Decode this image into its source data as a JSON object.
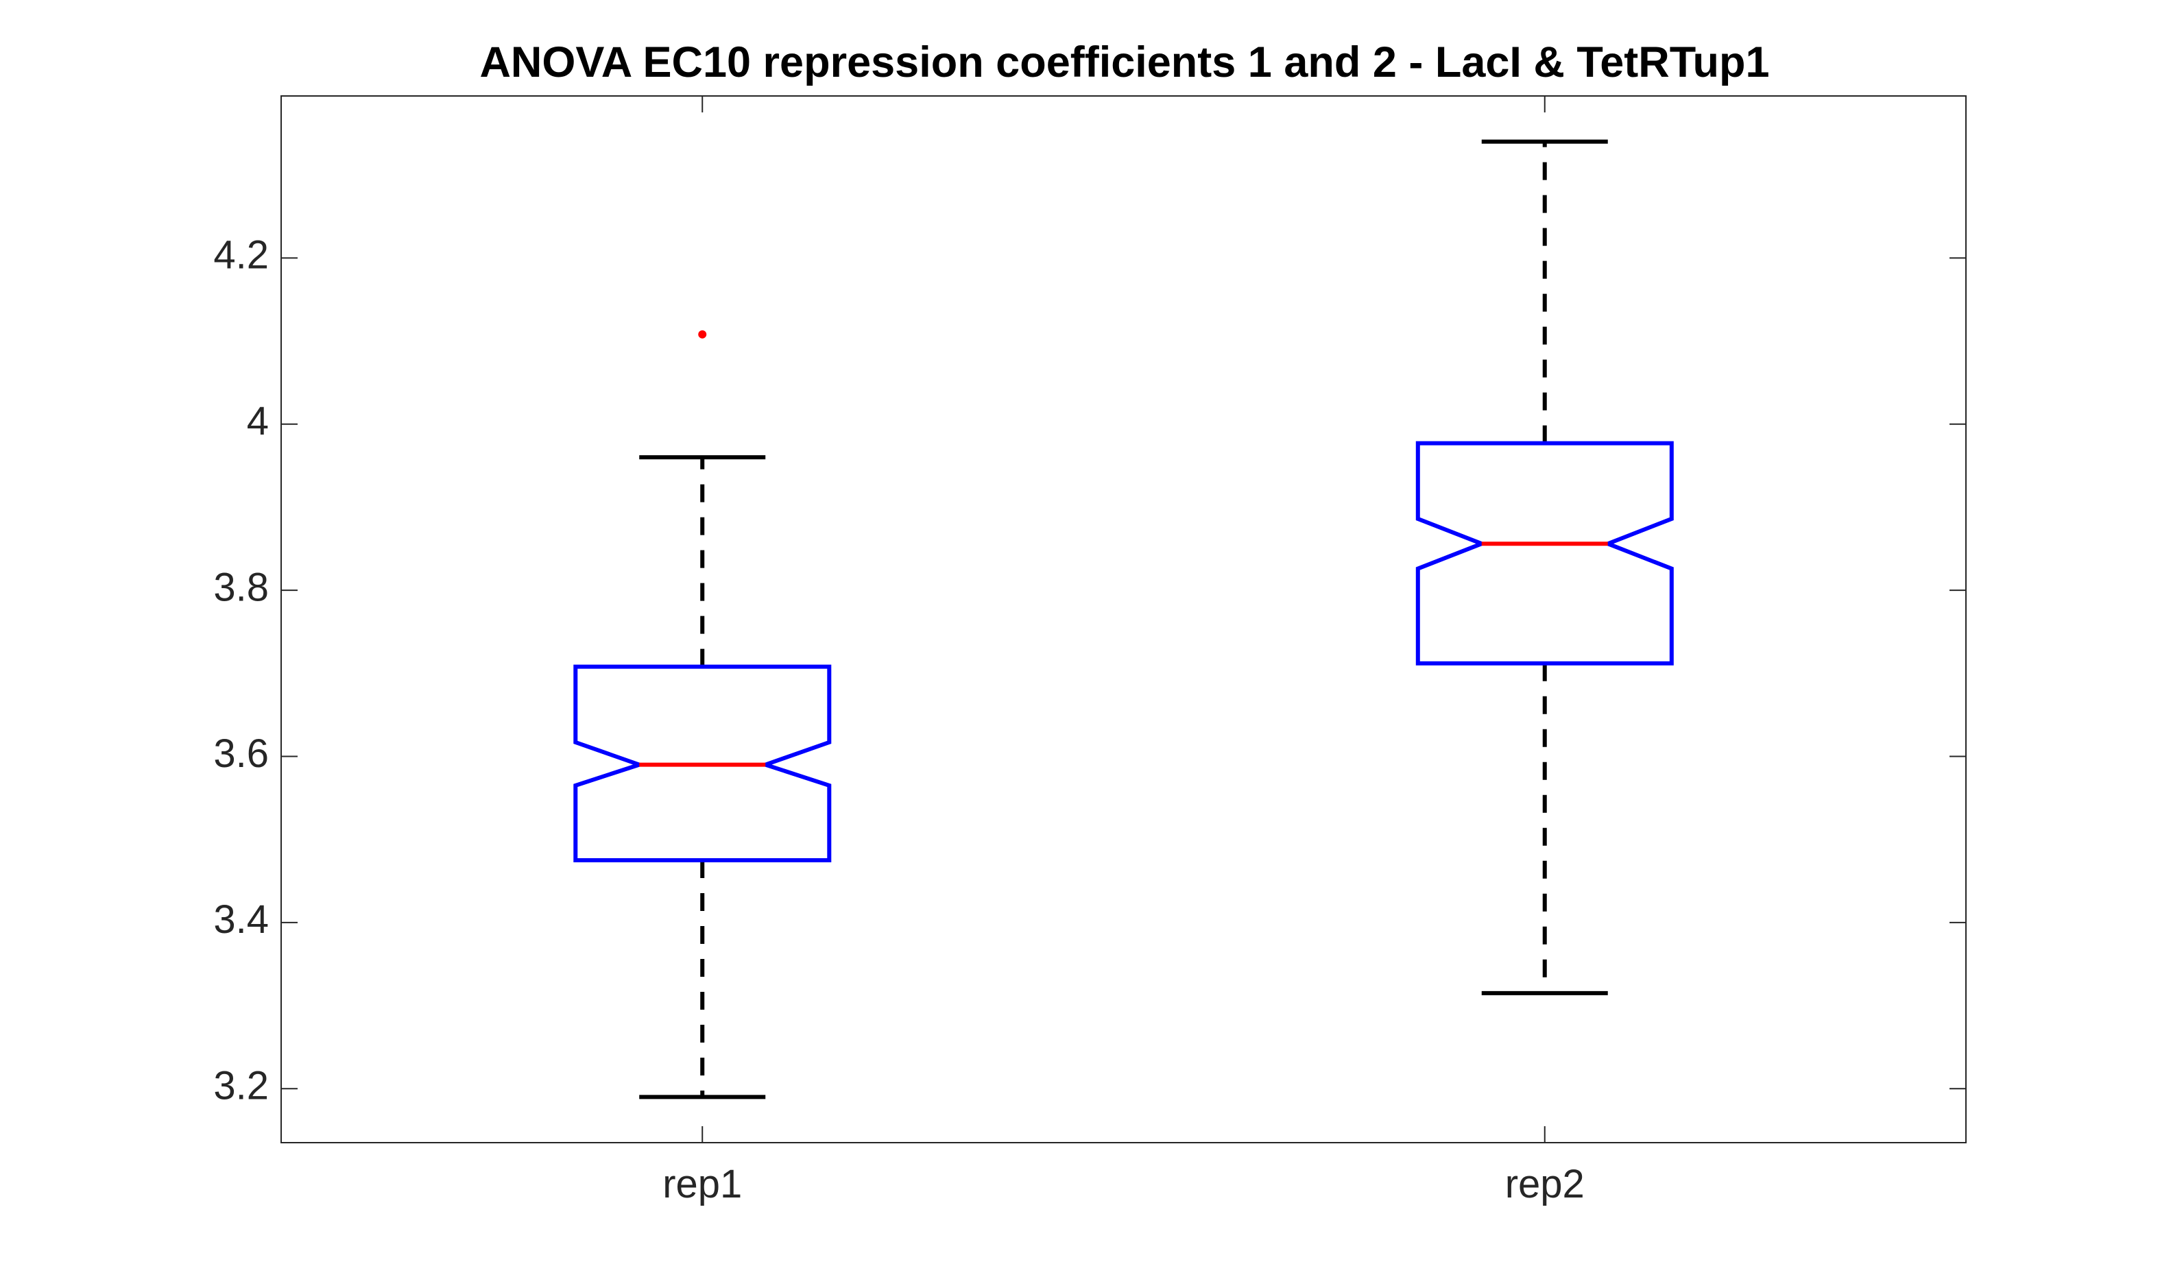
{
  "chart_data": {
    "type": "boxplot",
    "title": "ANOVA EC10 repression coefficients 1 and 2 - LacI & TetRTup1",
    "xlabel": "",
    "ylabel": "",
    "ylim": [
      3.135,
      4.395
    ],
    "yticks": [
      3.2,
      3.4,
      3.6,
      3.8,
      4.0,
      4.2
    ],
    "ytick_labels": [
      "3.2",
      "3.4",
      "3.6",
      "3.8",
      "4",
      "4.2"
    ],
    "categories": [
      "rep1",
      "rep2"
    ],
    "notched": true,
    "grid": false,
    "boxes": [
      {
        "name": "rep1",
        "whisker_low": 3.19,
        "q1": 3.475,
        "notch_low": 3.565,
        "median": 3.59,
        "notch_high": 3.617,
        "q3": 3.708,
        "whisker_high": 3.96,
        "outliers": [
          4.108
        ]
      },
      {
        "name": "rep2",
        "whisker_low": 3.315,
        "q1": 3.712,
        "notch_low": 3.826,
        "median": 3.856,
        "notch_high": 3.886,
        "q3": 3.977,
        "whisker_high": 4.34,
        "outliers": []
      }
    ],
    "colors": {
      "box": "#0000ff",
      "median": "#ff0000",
      "whisker": "#000000",
      "outlier": "#ff0000",
      "axes": "#262626"
    }
  }
}
